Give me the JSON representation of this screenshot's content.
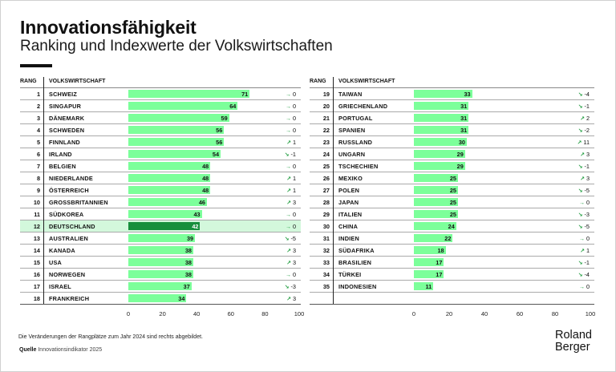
{
  "header": {
    "title": "Innovationsfähigkeit",
    "subtitle": "Ranking und Indexwerte der Volkswirtschaften"
  },
  "columns": {
    "rank": "RANG",
    "economy": "VOLKSWIRTSCHAFT"
  },
  "footer": {
    "note": "Die Veränderungen der Rangplätze zum Jahr 2024 sind rechts abgebildet.",
    "source_label": "Quelle",
    "source_text": "Innovationsindikator 2025",
    "logo_line1": "Roland",
    "logo_line2": "Berger"
  },
  "colors": {
    "bar": "#7cff9a",
    "highlight_bar": "#168f3c",
    "highlight_row": "#d3f8dc",
    "arrow": "#1a9a3a"
  },
  "icons": {
    "flat": "arrow-right-icon",
    "up": "arrow-up-right-icon",
    "down": "arrow-down-right-icon"
  },
  "chart_data": {
    "type": "bar",
    "title": "Innovationsfähigkeit",
    "subtitle": "Ranking und Indexwerte der Volkswirtschaften",
    "xlabel": "",
    "ylabel": "",
    "xlim": [
      0,
      100
    ],
    "xticks": [
      "0",
      "20",
      "40",
      "60",
      "80",
      "100"
    ],
    "highlight": "DEUTSCHLAND",
    "rows": [
      {
        "rank": "1",
        "country": "SCHWEIZ",
        "value": 71,
        "change": "0",
        "dir": "flat"
      },
      {
        "rank": "2",
        "country": "SINGAPUR",
        "value": 64,
        "change": "0",
        "dir": "flat"
      },
      {
        "rank": "3",
        "country": "DÄNEMARK",
        "value": 59,
        "change": "0",
        "dir": "flat"
      },
      {
        "rank": "4",
        "country": "SCHWEDEN",
        "value": 56,
        "change": "0",
        "dir": "flat"
      },
      {
        "rank": "5",
        "country": "FINNLAND",
        "value": 56,
        "change": "1",
        "dir": "up"
      },
      {
        "rank": "6",
        "country": "IRLAND",
        "value": 54,
        "change": "-1",
        "dir": "down"
      },
      {
        "rank": "7",
        "country": "BELGIEN",
        "value": 48,
        "change": "0",
        "dir": "flat"
      },
      {
        "rank": "8",
        "country": "NIEDERLANDE",
        "value": 48,
        "change": "1",
        "dir": "up"
      },
      {
        "rank": "9",
        "country": "ÖSTERREICH",
        "value": 48,
        "change": "1",
        "dir": "up"
      },
      {
        "rank": "10",
        "country": "GROSSBRITANNIEN",
        "value": 46,
        "change": "3",
        "dir": "up"
      },
      {
        "rank": "11",
        "country": "SÜDKOREA",
        "value": 43,
        "change": "0",
        "dir": "flat"
      },
      {
        "rank": "12",
        "country": "DEUTSCHLAND",
        "value": 42,
        "change": "0",
        "dir": "flat"
      },
      {
        "rank": "13",
        "country": "AUSTRALIEN",
        "value": 39,
        "change": "-5",
        "dir": "down"
      },
      {
        "rank": "14",
        "country": "KANADA",
        "value": 38,
        "change": "3",
        "dir": "up"
      },
      {
        "rank": "15",
        "country": "USA",
        "value": 38,
        "change": "3",
        "dir": "up"
      },
      {
        "rank": "16",
        "country": "NORWEGEN",
        "value": 38,
        "change": "0",
        "dir": "flat"
      },
      {
        "rank": "17",
        "country": "ISRAEL",
        "value": 37,
        "change": "-3",
        "dir": "down"
      },
      {
        "rank": "18",
        "country": "FRANKREICH",
        "value": 34,
        "change": "3",
        "dir": "up"
      },
      {
        "rank": "19",
        "country": "TAIWAN",
        "value": 33,
        "change": "-4",
        "dir": "down"
      },
      {
        "rank": "20",
        "country": "GRIECHENLAND",
        "value": 31,
        "change": "-1",
        "dir": "down"
      },
      {
        "rank": "21",
        "country": "PORTUGAL",
        "value": 31,
        "change": "2",
        "dir": "up"
      },
      {
        "rank": "22",
        "country": "SPANIEN",
        "value": 31,
        "change": "-2",
        "dir": "down"
      },
      {
        "rank": "23",
        "country": "RUSSLAND",
        "value": 30,
        "change": "11",
        "dir": "up"
      },
      {
        "rank": "24",
        "country": "UNGARN",
        "value": 29,
        "change": "3",
        "dir": "up"
      },
      {
        "rank": "25",
        "country": "TSCHECHIEN",
        "value": 29,
        "change": "-1",
        "dir": "down"
      },
      {
        "rank": "26",
        "country": "MEXIKO",
        "value": 25,
        "change": "3",
        "dir": "up"
      },
      {
        "rank": "27",
        "country": "POLEN",
        "value": 25,
        "change": "-5",
        "dir": "down"
      },
      {
        "rank": "28",
        "country": "JAPAN",
        "value": 25,
        "change": "0",
        "dir": "flat"
      },
      {
        "rank": "29",
        "country": "ITALIEN",
        "value": 25,
        "change": "-3",
        "dir": "down"
      },
      {
        "rank": "30",
        "country": "CHINA",
        "value": 24,
        "change": "-5",
        "dir": "down"
      },
      {
        "rank": "31",
        "country": "INDIEN",
        "value": 22,
        "change": "0",
        "dir": "flat"
      },
      {
        "rank": "32",
        "country": "SÜDAFRIKA",
        "value": 18,
        "change": "1",
        "dir": "up"
      },
      {
        "rank": "33",
        "country": "BRASILIEN",
        "value": 17,
        "change": "-1",
        "dir": "down"
      },
      {
        "rank": "34",
        "country": "TÜRKEI",
        "value": 17,
        "change": "-4",
        "dir": "down"
      },
      {
        "rank": "35",
        "country": "INDONESIEN",
        "value": 11,
        "change": "0",
        "dir": "flat"
      }
    ]
  }
}
